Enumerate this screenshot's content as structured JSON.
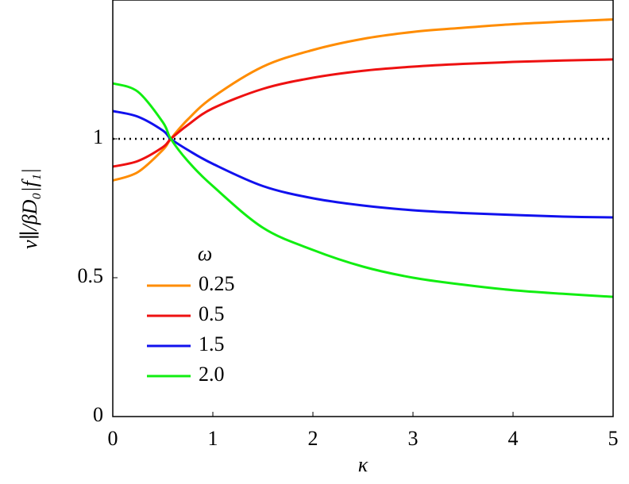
{
  "chart_data": {
    "type": "line",
    "x_label": "κ",
    "y_label": "v∥/βD₀|f₁|",
    "x": [
      0,
      0.25,
      0.5,
      0.58,
      0.75,
      1,
      1.5,
      2,
      2.5,
      3,
      3.5,
      4,
      4.5,
      5
    ],
    "series": [
      {
        "name": "0.25",
        "color": "#ff8c00",
        "values": [
          0.85,
          0.88,
          0.96,
          1.0,
          1.07,
          1.15,
          1.26,
          1.32,
          1.36,
          1.385,
          1.4,
          1.413,
          1.422,
          1.43
        ]
      },
      {
        "name": "0.5",
        "color": "#ee1111",
        "values": [
          0.9,
          0.92,
          0.97,
          1.0,
          1.05,
          1.11,
          1.18,
          1.22,
          1.245,
          1.26,
          1.27,
          1.277,
          1.282,
          1.286
        ]
      },
      {
        "name": "1.5",
        "color": "#1111ee",
        "values": [
          1.1,
          1.08,
          1.03,
          1.0,
          0.96,
          0.91,
          0.83,
          0.786,
          0.76,
          0.743,
          0.733,
          0.726,
          0.72,
          0.717
        ]
      },
      {
        "name": "2.0",
        "color": "#11ee11",
        "values": [
          1.2,
          1.17,
          1.06,
          1.0,
          0.92,
          0.83,
          0.68,
          0.6,
          0.54,
          0.5,
          0.475,
          0.455,
          0.442,
          0.431
        ]
      }
    ],
    "legend_title": "ω",
    "legend_position": "lower left",
    "reference_line": 1,
    "xlim": [
      0,
      5
    ],
    "ylim": [
      0,
      1.5
    ],
    "xticks": [
      0,
      1,
      2,
      3,
      4,
      5
    ],
    "yticks": [
      0,
      0.5,
      1
    ]
  }
}
